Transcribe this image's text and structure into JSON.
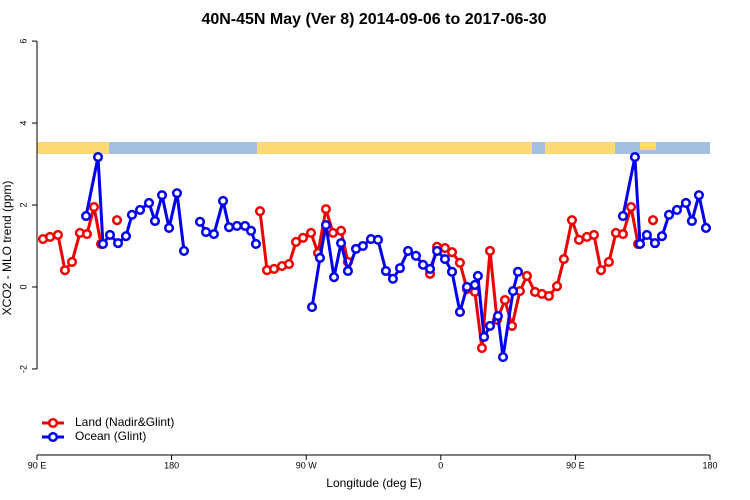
{
  "chart_data": {
    "type": "line",
    "title": "40N-45N May (Ver 8)   2014-09-06 to 2017-06-30",
    "x_label": "Longitude (deg E)",
    "y_label": "XCO2 - MLO trend (ppm)",
    "xlim": [
      90,
      540
    ],
    "xticks": [
      {
        "value": 90,
        "label": "90 E"
      },
      {
        "value": 180,
        "label": "180"
      },
      {
        "value": 270,
        "label": "90 W"
      },
      {
        "value": 360,
        "label": "0"
      },
      {
        "value": 450,
        "label": "90 E"
      },
      {
        "value": 540,
        "label": "180"
      }
    ],
    "ylim": [
      -4.1,
      6.1
    ],
    "yticks": [
      -2,
      0,
      2,
      4,
      6
    ],
    "legend": "bottom-left",
    "series": [
      {
        "name": "Land (Nadir&Glint)",
        "color": "#ee0000",
        "x": [
          94.0,
          98.7,
          104.0,
          108.7,
          113.4,
          118.7,
          123.4,
          128.1,
          132.8,
          null,
          143.5,
          null,
          239.1,
          243.8,
          248.5,
          253.8,
          258.5,
          263.2,
          267.9,
          273.2,
          277.9,
          283.2,
          287.9,
          293.3,
          297.9,
          null,
          352.8,
          357.5,
          362.8,
          367.5,
          372.8,
          377.5,
          382.8,
          387.5,
          392.9,
          397.6,
          402.9,
          407.6,
          412.9,
          417.6,
          423.0,
          427.6,
          432.3,
          437.7,
          442.3,
          447.7,
          452.4,
          457.7,
          462.4,
          467.1,
          472.4,
          477.1,
          481.8,
          487.2,
          491.9,
          null,
          501.9
        ],
        "values": [
          1.17,
          1.22,
          1.27,
          0.41,
          0.61,
          1.32,
          1.29,
          1.95,
          1.05,
          null,
          1.63,
          null,
          1.85,
          0.41,
          0.44,
          0.51,
          0.56,
          1.1,
          1.2,
          1.32,
          0.83,
          1.9,
          1.32,
          1.37,
          0.61,
          null,
          0.32,
          0.98,
          0.95,
          0.85,
          0.59,
          -0.05,
          -0.12,
          -1.49,
          0.88,
          -0.8,
          -0.32,
          -0.95,
          -0.1,
          0.27,
          -0.12,
          -0.17,
          -0.22,
          0.02,
          0.68,
          1.63,
          1.15,
          1.22,
          1.27,
          0.41,
          0.61,
          1.32,
          1.29,
          1.95,
          1.05,
          null,
          1.63
        ]
      },
      {
        "name": "Ocean (Glint)",
        "color": "#0000ee",
        "x": [
          122.8,
          130.8,
          134.1,
          138.8,
          144.2,
          149.5,
          153.5,
          158.9,
          164.9,
          168.9,
          173.6,
          178.3,
          183.6,
          188.3,
          null,
          199.0,
          203.0,
          208.3,
          214.4,
          218.4,
          223.7,
          229.1,
          233.1,
          236.4,
          null,
          273.9,
          279.2,
          283.2,
          288.6,
          293.3,
          297.9,
          303.3,
          307.9,
          313.3,
          318.0,
          323.3,
          328.0,
          332.7,
          338.1,
          343.4,
          348.1,
          352.8,
          357.5,
          362.8,
          367.5,
          372.8,
          377.5,
          382.8,
          384.8,
          388.9,
          392.9,
          398.2,
          401.6,
          408.3,
          411.6,
          null,
          481.8,
          489.8,
          493.2,
          497.8,
          503.2,
          507.9,
          512.6,
          517.9,
          523.9,
          527.9,
          532.6,
          537.3
        ],
        "values": [
          1.73,
          3.17,
          1.05,
          1.27,
          1.07,
          1.24,
          1.76,
          1.88,
          2.05,
          1.61,
          2.24,
          1.44,
          2.29,
          0.88,
          null,
          1.59,
          1.34,
          1.29,
          2.1,
          1.46,
          1.49,
          1.49,
          1.37,
          1.05,
          null,
          -0.49,
          0.71,
          1.51,
          0.24,
          1.07,
          0.39,
          0.93,
          1.0,
          1.17,
          1.15,
          0.39,
          0.2,
          0.46,
          0.88,
          0.76,
          0.54,
          0.44,
          0.88,
          0.68,
          0.37,
          -0.61,
          0.0,
          0.05,
          0.27,
          -1.22,
          -0.95,
          -0.71,
          -1.71,
          -0.1,
          0.37,
          null,
          1.73,
          3.17,
          1.05,
          1.27,
          1.07,
          1.24,
          1.76,
          1.88,
          2.05,
          1.61,
          2.24,
          1.44
        ]
      }
    ]
  }
}
